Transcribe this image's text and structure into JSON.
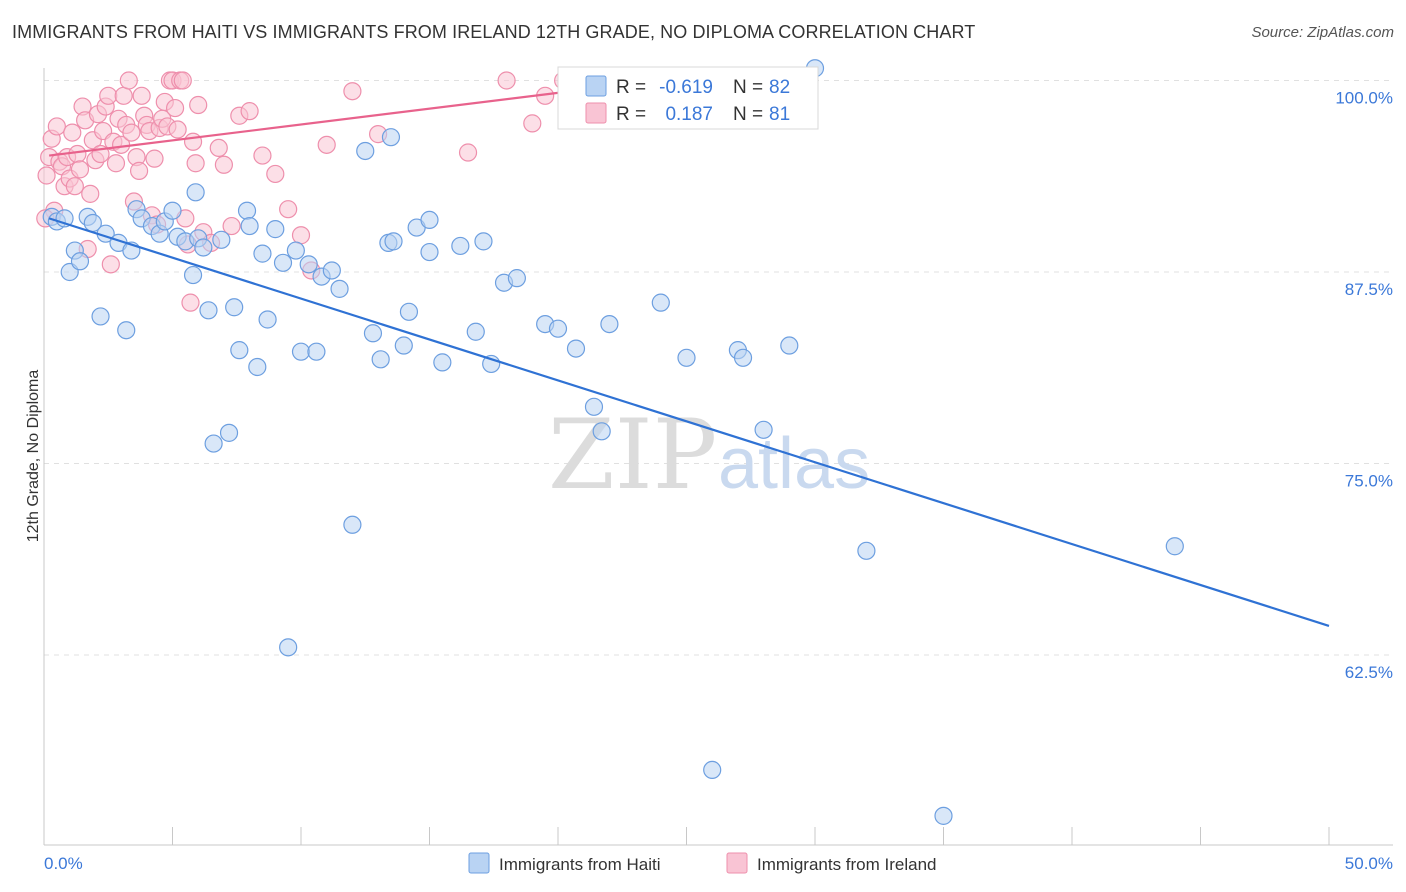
{
  "title": "IMMIGRANTS FROM HAITI VS IMMIGRANTS FROM IRELAND 12TH GRADE, NO DIPLOMA CORRELATION CHART",
  "source": "Source: ZipAtlas.com",
  "watermark": {
    "zip": "ZIP",
    "atlas": "atlas"
  },
  "colors": {
    "haiti_fill": "#b9d3f3",
    "haiti_stroke": "#6d9fe0",
    "haiti_line": "#2f72d4",
    "ireland_fill": "#f9c4d4",
    "ireland_stroke": "#ee8fac",
    "ireland_line": "#e8628c",
    "tick_text": "#3b78d8",
    "grid": "#e0e0e0"
  },
  "stats_box": {
    "rows": [
      {
        "r_label": "R =",
        "r_value": "-0.619",
        "n_label": "N =",
        "n_value": "82"
      },
      {
        "r_label": "R =",
        "r_value": "0.187",
        "n_label": "N =",
        "n_value": "81"
      }
    ]
  },
  "legend": [
    "Immigrants from Haiti",
    "Immigrants from Ireland"
  ],
  "chart_data": {
    "type": "scatter",
    "title": "IMMIGRANTS FROM HAITI VS IMMIGRANTS FROM IRELAND 12TH GRADE, NO DIPLOMA CORRELATION CHART",
    "xlabel": "",
    "ylabel": "12th Grade, No Diploma",
    "xlim": [
      0,
      50
    ],
    "ylim": [
      50,
      102.5
    ],
    "x_tick_labels": [
      "0.0%",
      "50.0%"
    ],
    "y_ticks": [
      62.5,
      75.0,
      87.5,
      100.0
    ],
    "y_tick_labels": [
      "62.5%",
      "75.0%",
      "87.5%",
      "100.0%"
    ],
    "grid": "horizontal dashed",
    "legend_position": "bottom-center",
    "series": [
      {
        "name": "Immigrants from Haiti",
        "r": -0.619,
        "n": 82,
        "trend": {
          "x": [
            0.2,
            50
          ],
          "y": [
            91.0,
            64.4
          ]
        },
        "points": [
          [
            0.3,
            91.1
          ],
          [
            0.5,
            90.8
          ],
          [
            0.8,
            91.0
          ],
          [
            1.0,
            87.5
          ],
          [
            1.2,
            88.9
          ],
          [
            1.4,
            88.2
          ],
          [
            1.7,
            91.1
          ],
          [
            1.9,
            90.7
          ],
          [
            2.2,
            84.6
          ],
          [
            2.4,
            90.0
          ],
          [
            2.9,
            89.4
          ],
          [
            3.2,
            83.7
          ],
          [
            3.4,
            88.9
          ],
          [
            3.6,
            91.6
          ],
          [
            3.8,
            91.0
          ],
          [
            4.2,
            90.5
          ],
          [
            4.5,
            90.0
          ],
          [
            4.7,
            90.8
          ],
          [
            5.0,
            91.5
          ],
          [
            5.2,
            89.8
          ],
          [
            5.5,
            89.5
          ],
          [
            5.8,
            87.3
          ],
          [
            5.9,
            92.7
          ],
          [
            6.0,
            89.7
          ],
          [
            6.2,
            89.1
          ],
          [
            6.4,
            85.0
          ],
          [
            6.6,
            76.3
          ],
          [
            6.9,
            89.6
          ],
          [
            7.2,
            77.0
          ],
          [
            7.4,
            85.2
          ],
          [
            7.6,
            82.4
          ],
          [
            7.9,
            91.5
          ],
          [
            8.0,
            90.5
          ],
          [
            8.3,
            81.3
          ],
          [
            8.5,
            88.7
          ],
          [
            8.7,
            84.4
          ],
          [
            9.0,
            90.3
          ],
          [
            9.3,
            88.1
          ],
          [
            9.5,
            63.0
          ],
          [
            9.8,
            88.9
          ],
          [
            10.0,
            82.3
          ],
          [
            10.3,
            88.0
          ],
          [
            10.6,
            82.3
          ],
          [
            10.8,
            87.2
          ],
          [
            11.2,
            87.6
          ],
          [
            11.5,
            86.4
          ],
          [
            12.0,
            71.0
          ],
          [
            12.5,
            95.4
          ],
          [
            12.8,
            83.5
          ],
          [
            13.1,
            81.8
          ],
          [
            13.4,
            89.4
          ],
          [
            13.6,
            89.5
          ],
          [
            14.0,
            82.7
          ],
          [
            14.2,
            84.9
          ],
          [
            14.5,
            90.4
          ],
          [
            15.0,
            90.9
          ],
          [
            15.5,
            81.6
          ],
          [
            16.2,
            89.2
          ],
          [
            16.8,
            83.6
          ],
          [
            17.1,
            89.5
          ],
          [
            17.4,
            81.5
          ],
          [
            17.9,
            86.8
          ],
          [
            18.4,
            87.1
          ],
          [
            19.5,
            84.1
          ],
          [
            20.0,
            83.8
          ],
          [
            20.7,
            82.5
          ],
          [
            21.4,
            78.7
          ],
          [
            21.7,
            77.1
          ],
          [
            22.0,
            84.1
          ],
          [
            24.0,
            85.5
          ],
          [
            25.0,
            81.9
          ],
          [
            26.0,
            55.0
          ],
          [
            27.0,
            82.4
          ],
          [
            27.2,
            81.9
          ],
          [
            28.0,
            77.2
          ],
          [
            29.0,
            82.7
          ],
          [
            32.0,
            69.3
          ],
          [
            35.0,
            52.0
          ],
          [
            44.0,
            69.6
          ],
          [
            30.0,
            100.8
          ],
          [
            13.5,
            96.3
          ],
          [
            15.0,
            88.8
          ]
        ]
      },
      {
        "name": "Immigrants from Ireland",
        "r": 0.187,
        "n": 81,
        "trend": {
          "x": [
            0.2,
            20.5
          ],
          "y": [
            95.1,
            99.3
          ]
        },
        "points": [
          [
            0.1,
            93.8
          ],
          [
            0.2,
            95.0
          ],
          [
            0.3,
            96.2
          ],
          [
            0.4,
            91.5
          ],
          [
            0.5,
            97.0
          ],
          [
            0.6,
            94.7
          ],
          [
            0.7,
            94.4
          ],
          [
            0.8,
            93.1
          ],
          [
            0.9,
            95.0
          ],
          [
            1.0,
            93.6
          ],
          [
            1.1,
            96.6
          ],
          [
            1.2,
            93.1
          ],
          [
            1.3,
            95.2
          ],
          [
            1.4,
            94.2
          ],
          [
            1.5,
            98.3
          ],
          [
            1.6,
            97.4
          ],
          [
            1.7,
            89.0
          ],
          [
            1.8,
            92.6
          ],
          [
            1.9,
            96.1
          ],
          [
            2.0,
            94.8
          ],
          [
            2.1,
            97.8
          ],
          [
            2.2,
            95.2
          ],
          [
            2.3,
            96.7
          ],
          [
            2.4,
            98.3
          ],
          [
            2.5,
            99.0
          ],
          [
            2.6,
            88.0
          ],
          [
            2.7,
            96.0
          ],
          [
            2.8,
            94.6
          ],
          [
            2.9,
            97.5
          ],
          [
            3.0,
            95.8
          ],
          [
            3.1,
            99.0
          ],
          [
            3.2,
            97.1
          ],
          [
            3.3,
            100.0
          ],
          [
            3.4,
            96.6
          ],
          [
            3.5,
            92.1
          ],
          [
            3.6,
            95.0
          ],
          [
            3.7,
            94.1
          ],
          [
            3.8,
            99.0
          ],
          [
            3.9,
            97.7
          ],
          [
            4.0,
            97.1
          ],
          [
            4.1,
            96.7
          ],
          [
            4.2,
            91.2
          ],
          [
            4.3,
            94.9
          ],
          [
            4.4,
            90.6
          ],
          [
            4.5,
            96.9
          ],
          [
            4.6,
            97.5
          ],
          [
            4.7,
            98.6
          ],
          [
            4.8,
            97.0
          ],
          [
            4.9,
            100.0
          ],
          [
            5.0,
            100.0
          ],
          [
            5.1,
            98.2
          ],
          [
            5.2,
            96.8
          ],
          [
            5.3,
            100.0
          ],
          [
            5.4,
            100.0
          ],
          [
            5.5,
            91.0
          ],
          [
            5.6,
            89.3
          ],
          [
            5.7,
            85.5
          ],
          [
            5.8,
            96.0
          ],
          [
            5.9,
            94.6
          ],
          [
            6.0,
            98.4
          ],
          [
            6.2,
            90.1
          ],
          [
            6.5,
            89.4
          ],
          [
            6.8,
            95.6
          ],
          [
            7.0,
            94.5
          ],
          [
            7.3,
            90.5
          ],
          [
            7.6,
            97.7
          ],
          [
            8.0,
            98.0
          ],
          [
            8.5,
            95.1
          ],
          [
            9.0,
            93.9
          ],
          [
            9.5,
            91.6
          ],
          [
            10.0,
            89.9
          ],
          [
            10.4,
            87.6
          ],
          [
            11.0,
            95.8
          ],
          [
            12.0,
            99.3
          ],
          [
            13.0,
            96.5
          ],
          [
            16.5,
            95.3
          ],
          [
            18.0,
            100.0
          ],
          [
            19.0,
            97.2
          ],
          [
            19.5,
            99.0
          ],
          [
            20.2,
            100.0
          ],
          [
            0.05,
            91.0
          ]
        ]
      }
    ]
  }
}
